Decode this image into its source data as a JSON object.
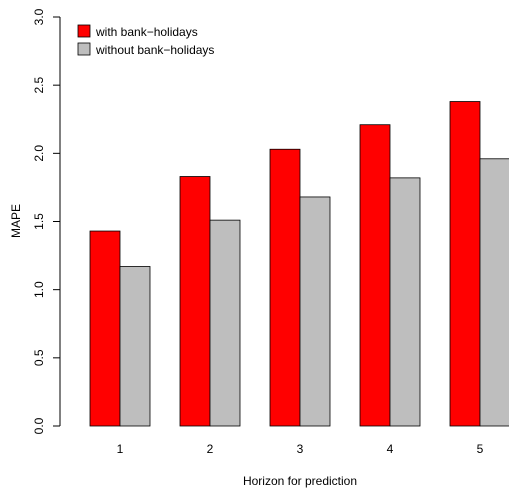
{
  "chart_data": {
    "type": "bar",
    "categories": [
      "1",
      "2",
      "3",
      "4",
      "5"
    ],
    "series": [
      {
        "name": "with bank−holidays",
        "color": "#ff0000",
        "values": [
          1.43,
          1.83,
          2.03,
          2.21,
          2.38
        ]
      },
      {
        "name": "without bank−holidays",
        "color": "#bebebe",
        "values": [
          1.17,
          1.51,
          1.68,
          1.82,
          1.96
        ]
      }
    ],
    "xlabel": "Horizon for prediction",
    "ylabel": "MAPE",
    "ylim": [
      0,
      3
    ],
    "yticks": [
      "0.0",
      "0.5",
      "1.0",
      "1.5",
      "2.0",
      "2.5",
      "3.0"
    ],
    "legend_position": "top-left",
    "grid": false
  }
}
